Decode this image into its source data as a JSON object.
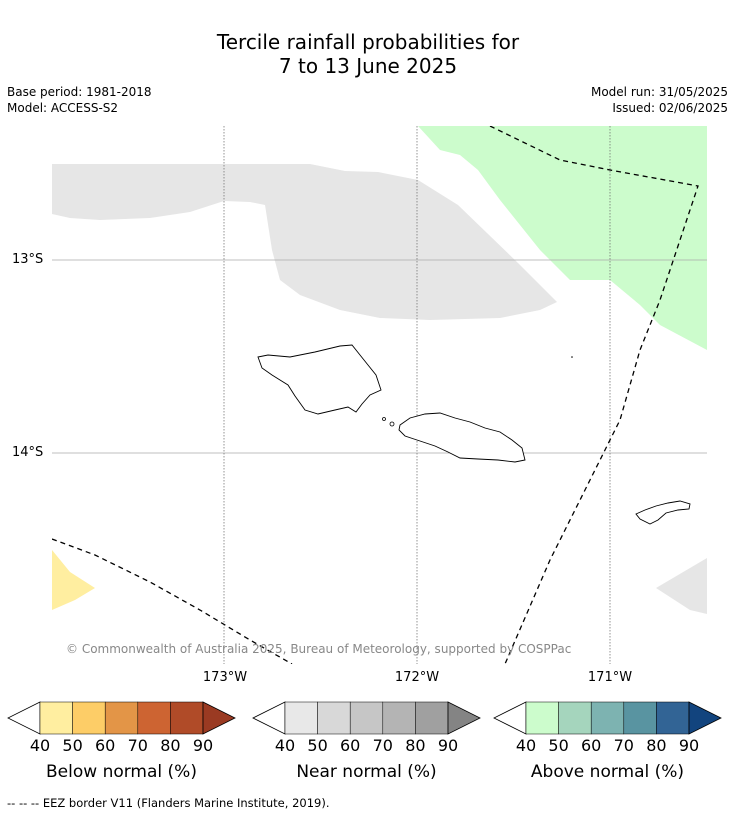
{
  "title_line1": "Tercile rainfall probabilities for",
  "title_line2": "7 to 13 June 2025",
  "base_period": "Base period: 1981-2018",
  "model": "Model: ACCESS-S2",
  "model_run": "Model run: 31/05/2025",
  "issued": "Issued: 02/06/2025",
  "lat_labels": [
    "13°S",
    "14°S"
  ],
  "lon_labels": [
    "173°W",
    "172°W",
    "171°W"
  ],
  "copyright": "© Commonwealth of Australia 2025, Bureau of Meteorology, supported by COSPPac",
  "legends": [
    {
      "label": "Below normal (%)",
      "ticks": [
        "40",
        "50",
        "60",
        "70",
        "80",
        "90"
      ],
      "colors": [
        "#ffeea0",
        "#fdcd67",
        "#e39547",
        "#cd6432",
        "#b04b28",
        "#9a3a22"
      ]
    },
    {
      "label": "Near normal (%)",
      "ticks": [
        "40",
        "50",
        "60",
        "70",
        "80",
        "90"
      ],
      "colors": [
        "#e8e8e8",
        "#d8d8d8",
        "#c6c6c6",
        "#b4b4b4",
        "#a0a0a0",
        "#848484"
      ]
    },
    {
      "label": "Above normal (%)",
      "ticks": [
        "40",
        "50",
        "60",
        "70",
        "80",
        "90"
      ],
      "colors": [
        "#ccfccc",
        "#a5d5bd",
        "#7db3b1",
        "#5994a1",
        "#326495",
        "#12447e"
      ]
    }
  ],
  "footnote": "-- -- -- EEZ border V11 (Flanders Marine Institute, 2019).",
  "colors": {
    "near_normal_fill": "#e6e6e6",
    "above_normal_fill": "#ccfccc",
    "below_normal_fill": "#ffeea0"
  }
}
